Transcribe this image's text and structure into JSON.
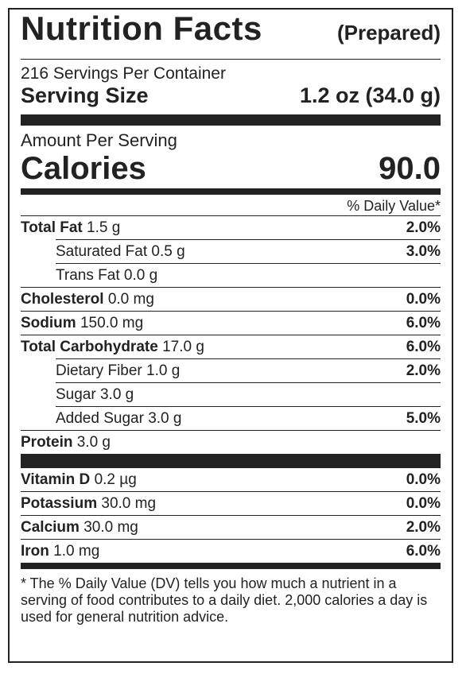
{
  "header": {
    "title": "Nutrition Facts",
    "note": "(Prepared)",
    "servings": "216 Servings Per Container",
    "serving_size_label": "Serving Size",
    "serving_size_value": "1.2 oz (34.0 g)"
  },
  "calories": {
    "amount_label": "Amount Per Serving",
    "label": "Calories",
    "value": "90.0"
  },
  "dv_header": "% Daily Value*",
  "nutrients": [
    {
      "name": "Total Fat",
      "amount": "1.5 g",
      "dv": "2.0%",
      "sub": [
        {
          "name": "Saturated Fat",
          "amount": "0.5 g",
          "dv": "3.0%"
        },
        {
          "name": "Trans Fat",
          "amount": "0.0 g"
        }
      ]
    },
    {
      "name": "Cholesterol",
      "amount": "0.0 mg",
      "dv": "0.0%"
    },
    {
      "name": "Sodium",
      "amount": "150.0 mg",
      "dv": "6.0%"
    },
    {
      "name": "Total Carbohydrate",
      "amount": "17.0 g",
      "dv": "6.0%",
      "sub": [
        {
          "name": "Dietary Fiber",
          "amount": "1.0 g",
          "dv": "2.0%"
        },
        {
          "name": "Sugar",
          "amount": "3.0 g"
        },
        {
          "name": "Added Sugar",
          "amount": "3.0 g",
          "dv": "5.0%"
        }
      ]
    },
    {
      "name": "Protein",
      "amount": "3.0 g"
    }
  ],
  "vitamins": [
    {
      "name": "Vitamin D",
      "amount": "0.2 µg",
      "dv": "0.0%"
    },
    {
      "name": "Potassium",
      "amount": "30.0 mg",
      "dv": "0.0%"
    },
    {
      "name": "Calcium",
      "amount": "30.0 mg",
      "dv": "2.0%"
    },
    {
      "name": "Iron",
      "amount": "1.0 mg",
      "dv": "6.0%"
    }
  ],
  "footnote": "* The % Daily Value (DV) tells you how much a nutrient in a serving of food contributes to a daily diet. 2,000 calories a day is used for general nutrition advice."
}
